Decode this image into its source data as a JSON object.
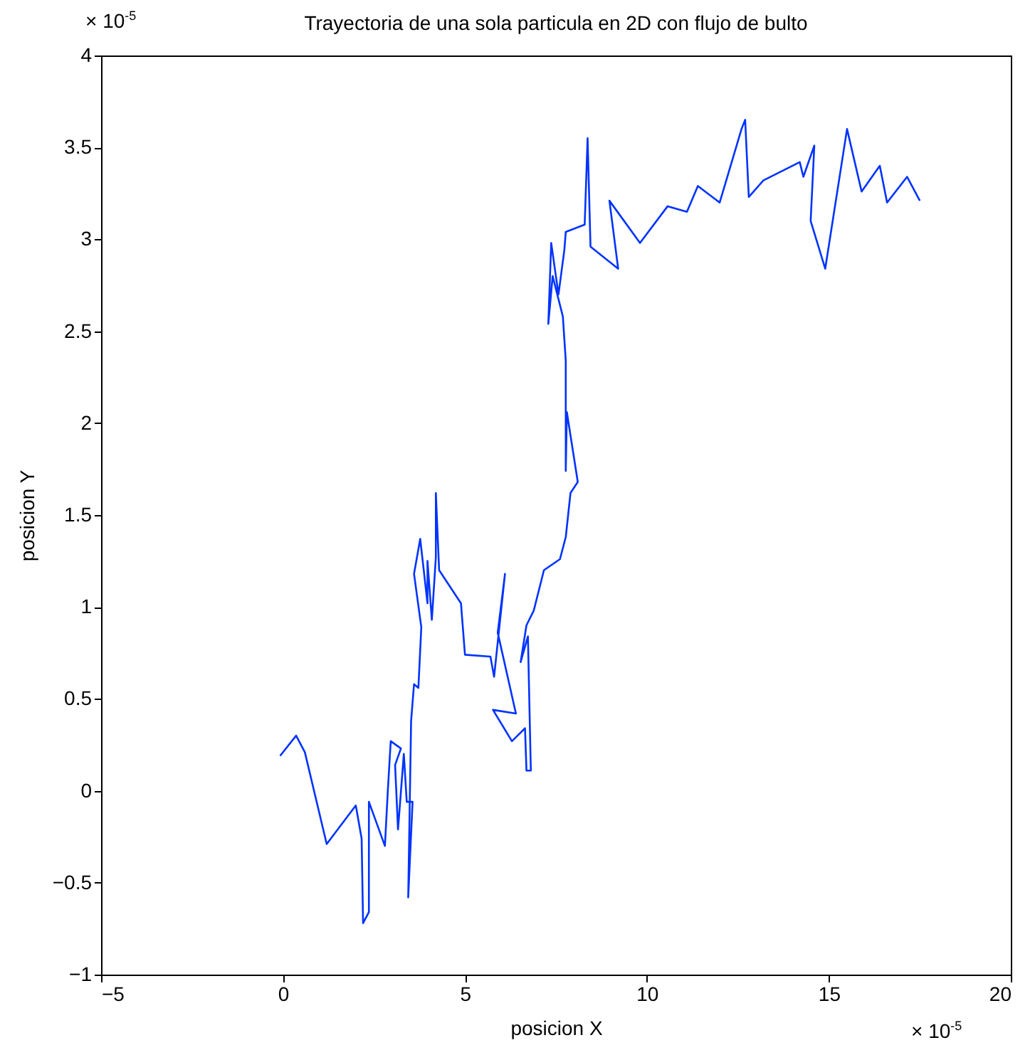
{
  "chart_data": {
    "type": "line",
    "title": "Trayectoria de una sola particula en 2D con flujo de bulto",
    "xlabel": "posicion X",
    "ylabel": "posicion Y",
    "annotations": [
      "× 10$^{-5}$",
      "× 10$^{-5}$"
    ],
    "xlim": [
      -5,
      20
    ],
    "xticks": [
      -5,
      0,
      5,
      10,
      15,
      20
    ],
    "ylim": [
      -1,
      4
    ],
    "yticks": [
      -1,
      -0.5,
      0,
      0.5,
      1,
      1.5,
      2,
      2.5,
      3,
      3.5,
      4
    ],
    "grid": false,
    "series": [
      {
        "color": "#0033ff",
        "x": [
          -0.08,
          0.36,
          0.6,
          1.2,
          2.0,
          2.16,
          2.2,
          2.36,
          2.36,
          2.8,
          2.88,
          2.96,
          3.24,
          3.08,
          3.16,
          3.32,
          3.4,
          3.56,
          3.44,
          3.52,
          3.6,
          3.72,
          3.8,
          3.6,
          3.77,
          3.97,
          3.97,
          4.09,
          4.2,
          4.2,
          4.29,
          4.49,
          4.89,
          5.0,
          5.7,
          5.8,
          6.1,
          5.9,
          6.4,
          5.77,
          6.29,
          6.65,
          6.69,
          6.81,
          6.73,
          6.53,
          6.69,
          6.89,
          7.17,
          7.61,
          7.77,
          7.9,
          8.1,
          7.8,
          7.77,
          7.77,
          7.69,
          7.41,
          7.29,
          7.37,
          7.57,
          7.73,
          7.77,
          8.29,
          8.37,
          8.45,
          9.21,
          8.97,
          9.81,
          10.57,
          11.1,
          11.4,
          12.0,
          12.6,
          12.7,
          12.8,
          13.2,
          14.2,
          14.3,
          14.6,
          14.5,
          14.9,
          15.5,
          15.9,
          16.4,
          16.6,
          17.15,
          17.5
        ],
        "values": [
          0.19,
          0.3,
          0.21,
          -0.29,
          -0.08,
          -0.26,
          -0.72,
          -0.66,
          -0.06,
          -0.3,
          0.0,
          0.27,
          0.23,
          0.14,
          -0.21,
          0.2,
          -0.06,
          -0.06,
          -0.58,
          0.38,
          0.58,
          0.56,
          0.89,
          1.18,
          1.37,
          1.02,
          1.25,
          0.93,
          1.27,
          1.62,
          1.2,
          1.14,
          1.02,
          0.74,
          0.73,
          0.62,
          1.18,
          0.86,
          0.42,
          0.44,
          0.27,
          0.34,
          0.11,
          0.11,
          0.84,
          0.7,
          0.9,
          0.98,
          1.2,
          1.26,
          1.38,
          1.62,
          1.68,
          2.06,
          1.74,
          2.34,
          2.58,
          2.8,
          2.54,
          2.98,
          2.7,
          2.94,
          3.04,
          3.08,
          3.55,
          2.96,
          2.84,
          3.21,
          2.98,
          3.18,
          3.15,
          3.29,
          3.2,
          3.6,
          3.65,
          3.23,
          3.32,
          3.42,
          3.34,
          3.51,
          3.1,
          2.84,
          3.6,
          3.26,
          3.4,
          3.2,
          3.34,
          3.21
        ]
      }
    ]
  }
}
